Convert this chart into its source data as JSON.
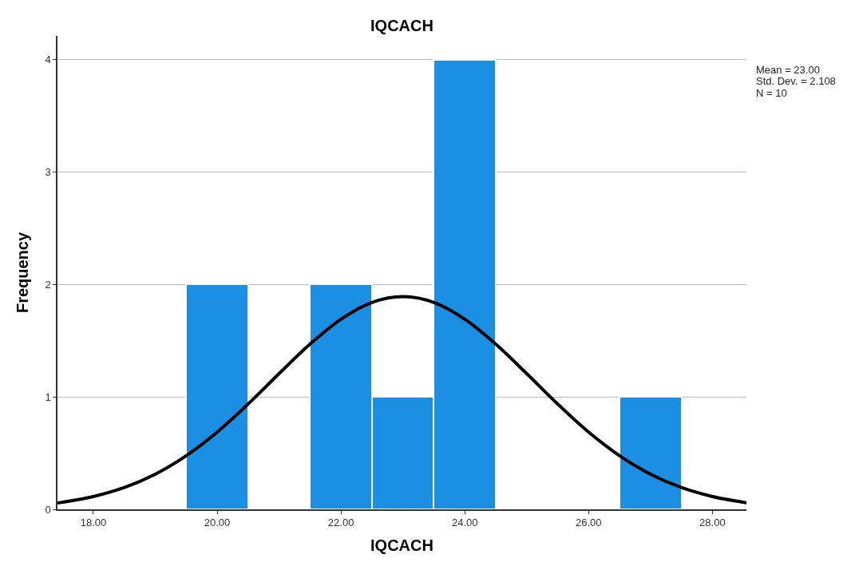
{
  "chart_data": {
    "type": "histogram",
    "title": "IQCACH",
    "xlabel": "IQCACH",
    "ylabel": "Frequency",
    "bins": [
      19.5,
      20.5,
      21.5,
      22.5,
      23.5,
      24.5,
      25.5,
      26.5,
      27.5
    ],
    "values": [
      2,
      0,
      2,
      1,
      4,
      0,
      0,
      1
    ],
    "color": "#1a8fe3",
    "series": [
      {
        "type": "line",
        "color": "#000000",
        "x": [
          17.42,
          17.5,
          18,
          18.5,
          19,
          19.5,
          20,
          20.5,
          21,
          21.5,
          22,
          22.5,
          23,
          23.5,
          24,
          24.5,
          25,
          25.5,
          26,
          26.5,
          27,
          27.5,
          28,
          28.5,
          28.55
        ],
        "values": [
          0.057,
          0.063,
          0.114,
          0.194,
          0.313,
          0.477,
          0.687,
          0.937,
          1.207,
          1.469,
          1.691,
          1.84,
          1.892,
          1.84,
          1.691,
          1.469,
          1.207,
          0.937,
          0.687,
          0.477,
          0.313,
          0.194,
          0.114,
          0.063,
          0.057
        ]
      }
    ],
    "xlim": [
      17.42,
      28.55
    ],
    "xticks": [
      {
        "value": 18,
        "label": "18.00"
      },
      {
        "value": 20,
        "label": "20.00"
      },
      {
        "value": 22,
        "label": "22.00"
      },
      {
        "value": 24,
        "label": "24.00"
      },
      {
        "value": 26,
        "label": "26.00"
      },
      {
        "value": 28,
        "label": "28.00"
      }
    ],
    "ylim": [
      0,
      4.21
    ],
    "yticks": [
      0,
      1,
      2,
      3,
      4
    ],
    "grid": "y",
    "annotations": [
      "Mean = 23.00",
      "Std. Dev. = 2.108",
      "N = 10"
    ]
  }
}
